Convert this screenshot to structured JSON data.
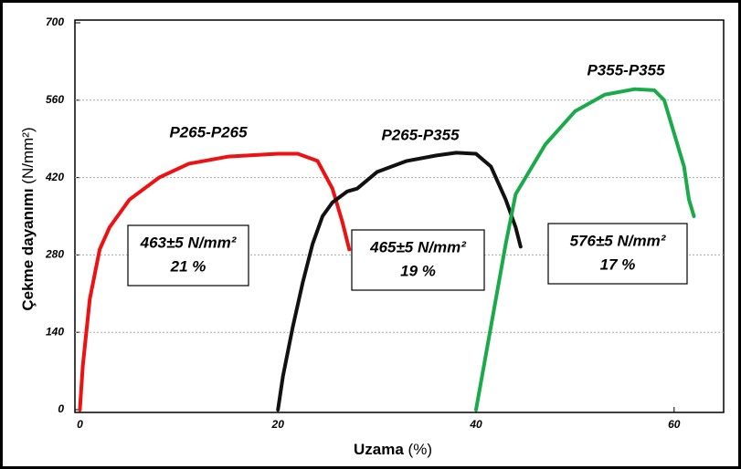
{
  "chart_data": {
    "type": "line",
    "xlabel": "Uzama",
    "xlabel_unit": "(%)",
    "ylabel": "Çekme dayanımı",
    "ylabel_unit": "(N/mm²)",
    "xlim": [
      -0.5,
      65
    ],
    "xticks": [
      0,
      20,
      40,
      60
    ],
    "ylim": [
      0,
      700
    ],
    "yticks": [
      0,
      140,
      280,
      420,
      560,
      700
    ],
    "grid": true,
    "series": [
      {
        "name": "P265-P265",
        "color": "#ee1111",
        "x": [
          0,
          0.3,
          1,
          2,
          3,
          5,
          8,
          11,
          15,
          20,
          22,
          24,
          25.5,
          26.5,
          27.2
        ],
        "values": [
          0,
          80,
          200,
          290,
          330,
          380,
          420,
          445,
          458,
          463,
          463,
          450,
          400,
          340,
          290
        ]
      },
      {
        "name": "P265-P355",
        "color": "#111111",
        "x": [
          20,
          20.5,
          21.5,
          22.5,
          23.5,
          24.5,
          25.5,
          27,
          28,
          30,
          33,
          36,
          38,
          40,
          41.5,
          43,
          44,
          44.5
        ],
        "values": [
          0,
          60,
          150,
          230,
          300,
          350,
          375,
          395,
          400,
          430,
          450,
          460,
          465,
          463,
          440,
          380,
          330,
          295
        ]
      },
      {
        "name": "P355-P355",
        "color": "#1aaa4a",
        "x": [
          40,
          41,
          42,
          43,
          44,
          45,
          47,
          50,
          53,
          56,
          58,
          59,
          60,
          61,
          61.5,
          62
        ],
        "values": [
          0,
          100,
          200,
          300,
          390,
          420,
          480,
          540,
          570,
          580,
          578,
          560,
          500,
          440,
          380,
          350
        ]
      }
    ],
    "annotations": [
      {
        "lines": [
          "463±5 N/mm²",
          "21 %"
        ]
      },
      {
        "lines": [
          "465±5 N/mm²",
          "19 %"
        ]
      },
      {
        "lines": [
          "576±5 N/mm²",
          "17 %"
        ]
      }
    ]
  }
}
